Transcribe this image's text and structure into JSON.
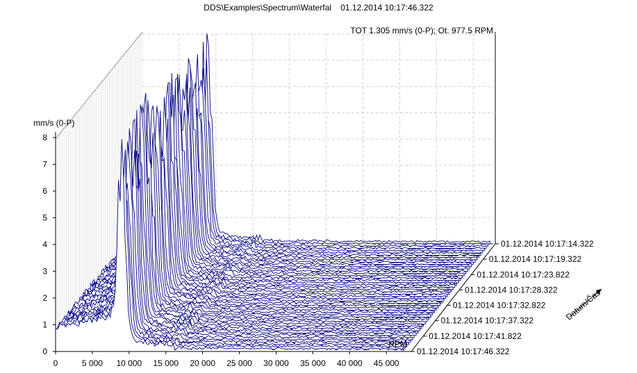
{
  "header": {
    "title": "DDS\\Examples\\Spectrum\\Waterfal    01.12.2014 10:17:46.322",
    "status": "TOT 1.305 mm/s (0-P); Ot. 977.5 RPM"
  },
  "chart_data": {
    "type": "area",
    "subtype": "waterfall-3d",
    "title": "DDS\\Examples\\Spectrum\\Waterfal    01.12.2014 10:17:46.322",
    "annotation": "TOT 1.305 mm/s (0-P); Ot. 977.5 RPM",
    "xlabel": "RPM",
    "ylabel": "mm/s (0-P)",
    "zlabel": "Datum/Čas",
    "xlim": [
      0,
      48000
    ],
    "ylim": [
      0,
      8.5
    ],
    "x_ticks": [
      "0",
      "5 000",
      "10 000",
      "15 000",
      "20 000",
      "25 000",
      "30 000",
      "35 000",
      "40 000",
      "45 000"
    ],
    "x_tick_values": [
      0,
      5000,
      10000,
      15000,
      20000,
      25000,
      30000,
      35000,
      40000,
      45000
    ],
    "y_ticks": [
      "0",
      "1",
      "2",
      "3",
      "4",
      "5",
      "6",
      "7",
      "8"
    ],
    "y_tick_values": [
      0,
      1,
      2,
      3,
      4,
      5,
      6,
      7,
      8
    ],
    "z_ticks": [
      "01.12.2014 10:17:46.322",
      "01.12.2014 10:17:41.822",
      "01.12.2014 10:17:37.322",
      "01.12.2014 10:17:32.822",
      "01.12.2014 10:17:28.322",
      "01.12.2014 10:17:23.822",
      "01.12.2014 10:17:19.322",
      "01.12.2014 10:17:14.322"
    ],
    "grid": true,
    "series_color": "#000080",
    "n_traces": 48,
    "peak": {
      "x": 9000,
      "y": 8.2
    },
    "base_level": 1.1
  }
}
